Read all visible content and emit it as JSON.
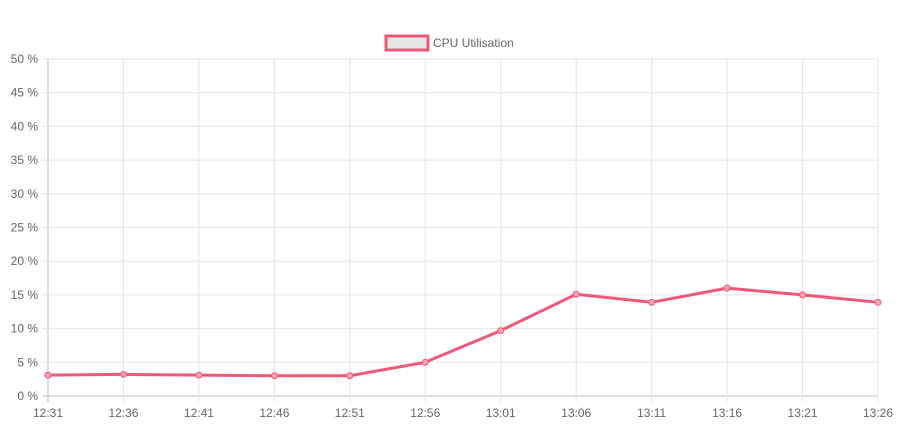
{
  "chart_data": {
    "type": "line",
    "legend": {
      "placement": "top-center",
      "label": "CPU Utilisation"
    },
    "categories": [
      "12:31",
      "12:36",
      "12:41",
      "12:46",
      "12:51",
      "12:56",
      "13:01",
      "13:06",
      "13:11",
      "13:16",
      "13:21",
      "13:26"
    ],
    "series": [
      {
        "name": "CPU Utilisation",
        "color": "#f0587a",
        "values": [
          3.1,
          3.2,
          3.1,
          3.0,
          3.0,
          5.0,
          9.7,
          15.1,
          13.9,
          16.0,
          15.0,
          13.9
        ]
      }
    ],
    "ylim": [
      0,
      50
    ],
    "y_ticks": [
      {
        "value": 0,
        "label": "0 %"
      },
      {
        "value": 5,
        "label": "5 %"
      },
      {
        "value": 10,
        "label": "10 %"
      },
      {
        "value": 15,
        "label": "15 %"
      },
      {
        "value": 20,
        "label": "20 %"
      },
      {
        "value": 25,
        "label": "25 %"
      },
      {
        "value": 30,
        "label": "30 %"
      },
      {
        "value": 35,
        "label": "35 %"
      },
      {
        "value": 40,
        "label": "40 %"
      },
      {
        "value": 45,
        "label": "45 %"
      },
      {
        "value": 50,
        "label": "50 %"
      }
    ],
    "grid": true,
    "colors": {
      "grid": "#e5e5e5",
      "axis": "#bdbdbd",
      "legend_fill": "#e6e6e6"
    }
  }
}
